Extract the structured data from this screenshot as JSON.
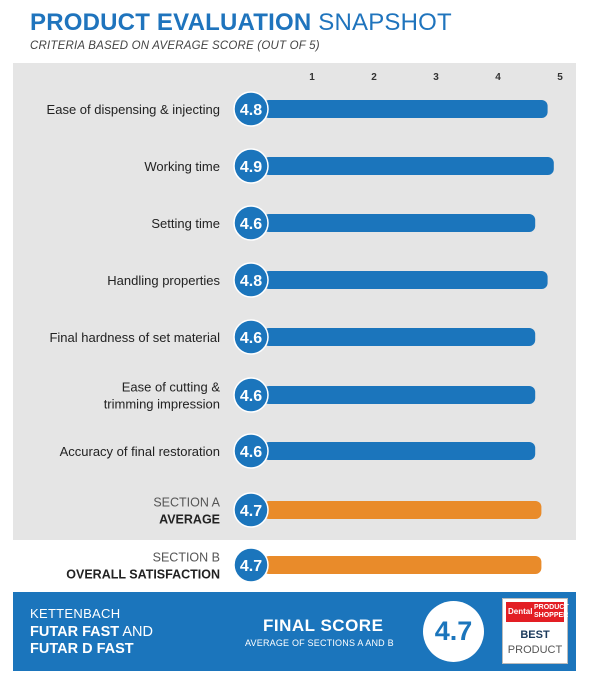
{
  "header": {
    "title_bold": "PRODUCT EVALUATION",
    "title_light": "SNAPSHOT",
    "subtitle": "CRITERIA BASED ON AVERAGE SCORE (OUT OF 5)"
  },
  "chart_data": {
    "type": "bar",
    "orientation": "horizontal",
    "xlim": [
      0,
      5
    ],
    "ticks": [
      "1",
      "2",
      "3",
      "4",
      "5"
    ],
    "categories": [
      "Ease of dispensing & injecting",
      "Working time",
      "Setting time",
      "Handling properties",
      "Final hardness of set material",
      "Ease of cutting & trimming impression",
      "Accuracy of final restoration",
      "SECTION A AVERAGE",
      "SECTION B OVERALL SATISFACTION"
    ],
    "values": [
      4.8,
      4.9,
      4.6,
      4.8,
      4.6,
      4.6,
      4.6,
      4.7,
      4.7
    ],
    "value_labels": [
      "4.8",
      "4.9",
      "4.6",
      "4.8",
      "4.6",
      "4.6",
      "4.6",
      "4.7",
      "4.7"
    ],
    "rows": [
      {
        "lines": [
          "Ease of dispensing & injecting"
        ],
        "style": "criterion"
      },
      {
        "lines": [
          "Working time"
        ],
        "style": "criterion"
      },
      {
        "lines": [
          "Setting time"
        ],
        "style": "criterion"
      },
      {
        "lines": [
          "Handling properties"
        ],
        "style": "criterion"
      },
      {
        "lines": [
          "Final hardness of set material"
        ],
        "style": "criterion"
      },
      {
        "lines": [
          "Ease of cutting &",
          "trimming impression"
        ],
        "style": "criterion"
      },
      {
        "lines": [
          "Accuracy of final restoration"
        ],
        "style": "criterion"
      },
      {
        "lines": [
          "SECTION A",
          "AVERAGE"
        ],
        "style": "section"
      },
      {
        "lines": [
          "SECTION B",
          "OVERALL SATISFACTION"
        ],
        "style": "section"
      }
    ],
    "colors": {
      "criterion_bar": "#1b75bc",
      "section_bar": "#e98b2a",
      "circle": "#1b75bc",
      "circle_text": "#ffffff"
    }
  },
  "footer": {
    "brand": "KETTENBACH",
    "product_line1_bold": "FUTAR FAST",
    "product_line1_light": "AND",
    "product_line2": "FUTAR D FAST",
    "final_label": "FINAL SCORE",
    "final_sub": "AVERAGE OF SECTIONS A AND B",
    "final_value": "4.7",
    "badge": {
      "top_left": "Dental",
      "top_right_1": "PRODUCT",
      "top_right_2": "SHOPPER",
      "best": "BEST",
      "product": "PRODUCT"
    }
  }
}
